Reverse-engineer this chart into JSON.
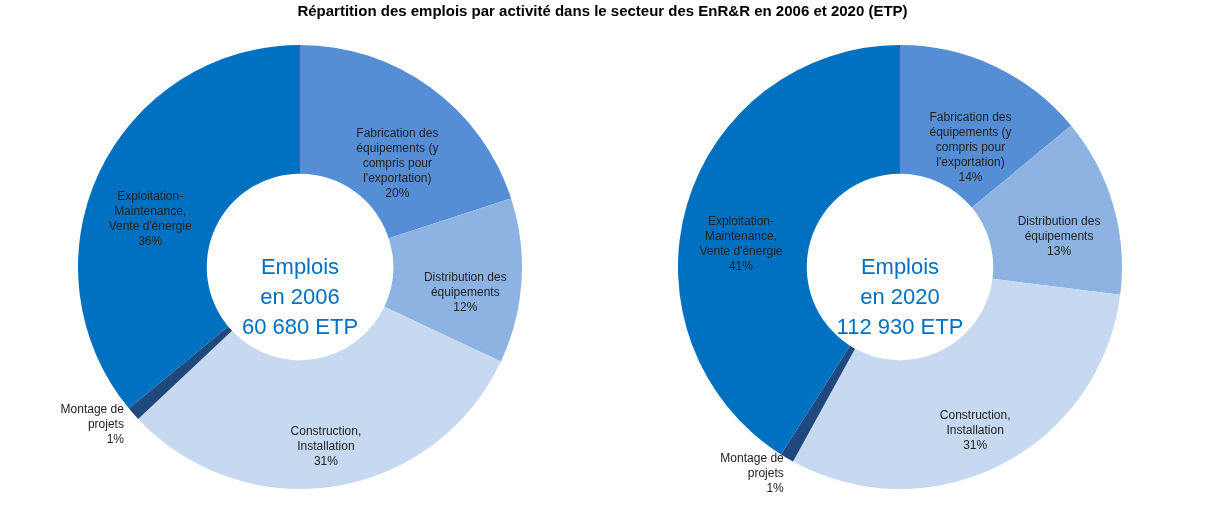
{
  "chart_data": [
    {
      "type": "donut",
      "title": "Répartition des emplois par activité dans le secteur des EnR&R en 2006 et 2020 (ETP)",
      "categories": [
        "Fabrication des équipements (y compris pour l'exportation)",
        "Distribution des équipements",
        "Construction, Installation",
        "Montage de projets",
        "Exploitation-Maintenance, Vente d'énergie"
      ],
      "values": [
        20,
        12,
        31,
        1,
        36
      ],
      "value_labels": [
        "20%",
        "12%",
        "31%",
        "1%",
        "36%"
      ],
      "colors": [
        "#558ed5",
        "#8db3e2",
        "#c6d9f1",
        "#1f497d",
        "#0070c0"
      ],
      "annotations": [
        "Emplois",
        "en 2006",
        "60 680 ETP"
      ]
    },
    {
      "type": "donut",
      "categories": [
        "Fabrication des équipements (y compris pour l'exportation)",
        "Distribution des équipements",
        "Construction, Installation",
        "Montage de projets",
        "Exploitation-Maintenance, Vente d'énergie"
      ],
      "values": [
        14,
        13,
        31,
        1,
        41
      ],
      "value_labels": [
        "14%",
        "13%",
        "31%",
        "1%",
        "41%"
      ],
      "colors": [
        "#558ed5",
        "#8db3e2",
        "#c6d9f1",
        "#1f497d",
        "#0070c0"
      ],
      "annotations": [
        "Emplois",
        "en 2020",
        "112 930 ETP"
      ]
    }
  ]
}
